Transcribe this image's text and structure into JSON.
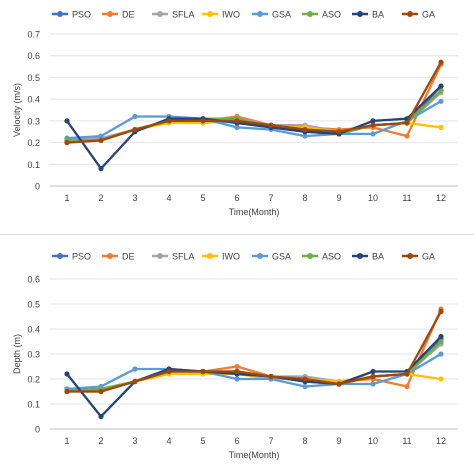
{
  "chart_data": [
    {
      "type": "line",
      "title": "",
      "xlabel": "Time(Month)",
      "ylabel": "Velocity (m/s)",
      "ylim": [
        0,
        0.7
      ],
      "yticks": [
        "0",
        "0.1",
        "0.2",
        "0.3",
        "0.4",
        "0.5",
        "0.6",
        "0.7"
      ],
      "categories": [
        "1",
        "2",
        "3",
        "4",
        "5",
        "6",
        "7",
        "8",
        "9",
        "10",
        "11",
        "12"
      ],
      "grid": true,
      "legend_position": "top",
      "series": [
        {
          "name": "PSO",
          "color": "#4472c4",
          "values": [
            0.22,
            0.21,
            0.26,
            0.3,
            0.3,
            0.3,
            0.27,
            0.25,
            0.24,
            0.28,
            0.29,
            0.46
          ]
        },
        {
          "name": "DE",
          "color": "#ed7d31",
          "values": [
            0.2,
            0.21,
            0.26,
            0.3,
            0.3,
            0.32,
            0.28,
            0.27,
            0.26,
            0.27,
            0.23,
            0.56
          ]
        },
        {
          "name": "SFLA",
          "color": "#a5a5a5",
          "values": [
            0.21,
            0.22,
            0.26,
            0.3,
            0.3,
            0.31,
            0.28,
            0.28,
            0.25,
            0.28,
            0.29,
            0.43
          ]
        },
        {
          "name": "IWO",
          "color": "#ffc000",
          "values": [
            0.21,
            0.21,
            0.26,
            0.29,
            0.29,
            0.3,
            0.27,
            0.27,
            0.25,
            0.28,
            0.29,
            0.27
          ]
        },
        {
          "name": "GSA",
          "color": "#5b9bd5",
          "values": [
            0.22,
            0.23,
            0.32,
            0.32,
            0.31,
            0.27,
            0.26,
            0.23,
            0.24,
            0.24,
            0.3,
            0.39
          ]
        },
        {
          "name": "ASO",
          "color": "#70ad47",
          "values": [
            0.21,
            0.21,
            0.26,
            0.3,
            0.31,
            0.31,
            0.27,
            0.26,
            0.24,
            0.28,
            0.29,
            0.44
          ]
        },
        {
          "name": "BA",
          "color": "#264478",
          "values": [
            0.3,
            0.08,
            0.25,
            0.31,
            0.31,
            0.29,
            0.27,
            0.25,
            0.24,
            0.3,
            0.31,
            0.46
          ]
        },
        {
          "name": "GA",
          "color": "#9e480e",
          "values": [
            0.2,
            0.21,
            0.26,
            0.3,
            0.3,
            0.3,
            0.28,
            0.26,
            0.25,
            0.28,
            0.29,
            0.57
          ]
        }
      ]
    },
    {
      "type": "line",
      "title": "",
      "xlabel": "Time(Month)",
      "ylabel": "Depth (m)",
      "ylim": [
        0,
        0.6
      ],
      "yticks": [
        "0",
        "0.1",
        "0.2",
        "0.3",
        "0.4",
        "0.5",
        "0.6"
      ],
      "categories": [
        "1",
        "2",
        "3",
        "4",
        "5",
        "6",
        "7",
        "8",
        "9",
        "10",
        "11",
        "12"
      ],
      "grid": true,
      "legend_position": "top",
      "series": [
        {
          "name": "PSO",
          "color": "#4472c4",
          "values": [
            0.16,
            0.16,
            0.19,
            0.23,
            0.23,
            0.22,
            0.21,
            0.19,
            0.18,
            0.21,
            0.22,
            0.36
          ]
        },
        {
          "name": "DE",
          "color": "#ed7d31",
          "values": [
            0.15,
            0.15,
            0.19,
            0.23,
            0.23,
            0.25,
            0.21,
            0.2,
            0.19,
            0.2,
            0.17,
            0.48
          ]
        },
        {
          "name": "SFLA",
          "color": "#a5a5a5",
          "values": [
            0.15,
            0.16,
            0.19,
            0.23,
            0.23,
            0.23,
            0.21,
            0.21,
            0.19,
            0.21,
            0.22,
            0.34
          ]
        },
        {
          "name": "IWO",
          "color": "#ffc000",
          "values": [
            0.15,
            0.16,
            0.19,
            0.22,
            0.22,
            0.22,
            0.2,
            0.2,
            0.19,
            0.21,
            0.22,
            0.2
          ]
        },
        {
          "name": "GSA",
          "color": "#5b9bd5",
          "values": [
            0.16,
            0.17,
            0.24,
            0.24,
            0.23,
            0.2,
            0.2,
            0.17,
            0.18,
            0.18,
            0.22,
            0.3
          ]
        },
        {
          "name": "ASO",
          "color": "#70ad47",
          "values": [
            0.15,
            0.16,
            0.19,
            0.23,
            0.23,
            0.23,
            0.21,
            0.19,
            0.18,
            0.21,
            0.22,
            0.35
          ]
        },
        {
          "name": "BA",
          "color": "#264478",
          "values": [
            0.22,
            0.05,
            0.19,
            0.24,
            0.23,
            0.22,
            0.21,
            0.19,
            0.18,
            0.23,
            0.23,
            0.37
          ]
        },
        {
          "name": "GA",
          "color": "#9e480e",
          "values": [
            0.15,
            0.15,
            0.19,
            0.23,
            0.23,
            0.23,
            0.21,
            0.2,
            0.18,
            0.21,
            0.22,
            0.47
          ]
        }
      ]
    }
  ]
}
